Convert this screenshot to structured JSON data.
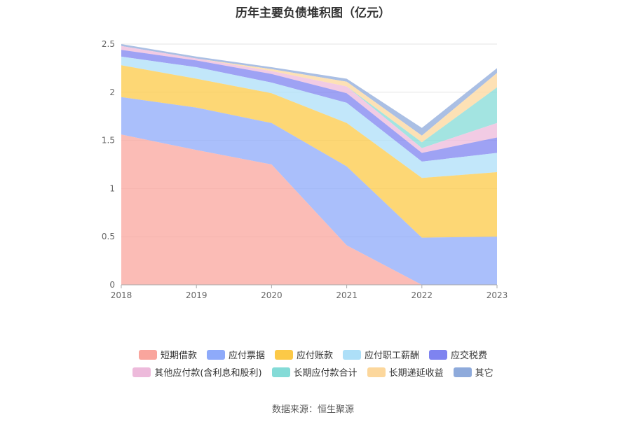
{
  "chart_data": {
    "type": "area",
    "stacked": true,
    "title": "历年主要负债堆积图（亿元）",
    "x": [
      "2018",
      "2019",
      "2020",
      "2021",
      "2022",
      "2023"
    ],
    "ylim": [
      0,
      2.5
    ],
    "yticks": [
      "0",
      "0.5",
      "1",
      "1.5",
      "2",
      "2.5"
    ],
    "grid": true,
    "legend_position": "bottom",
    "series": [
      {
        "name": "短期借款",
        "color": "#f9a59d",
        "values": [
          1.56,
          1.4,
          1.25,
          0.41,
          0.0,
          0.0
        ]
      },
      {
        "name": "应付票据",
        "color": "#8eaafa",
        "values": [
          0.39,
          0.44,
          0.43,
          0.82,
          0.49,
          0.5
        ]
      },
      {
        "name": "应付账款",
        "color": "#fcc947",
        "values": [
          0.33,
          0.3,
          0.31,
          0.45,
          0.62,
          0.67
        ]
      },
      {
        "name": "应付职工薪酬",
        "color": "#addff8",
        "values": [
          0.09,
          0.12,
          0.11,
          0.21,
          0.17,
          0.2
        ]
      },
      {
        "name": "应交税费",
        "color": "#7e83f0",
        "values": [
          0.07,
          0.07,
          0.09,
          0.1,
          0.09,
          0.16
        ]
      },
      {
        "name": "其他应付款(含利息和股利)",
        "color": "#edbadb",
        "values": [
          0.04,
          0.02,
          0.03,
          0.07,
          0.05,
          0.15
        ]
      },
      {
        "name": "长期应付款合计",
        "color": "#84dbd7",
        "values": [
          0.0,
          0.0,
          0.0,
          0.0,
          0.06,
          0.37
        ]
      },
      {
        "name": "长期递延收益",
        "color": "#fcd79c",
        "values": [
          0.0,
          0.0,
          0.02,
          0.05,
          0.07,
          0.15
        ]
      },
      {
        "name": "其它",
        "color": "#8eaadb",
        "values": [
          0.02,
          0.02,
          0.02,
          0.03,
          0.08,
          0.05
        ]
      }
    ]
  },
  "source_text": "数据来源：恒生聚源"
}
